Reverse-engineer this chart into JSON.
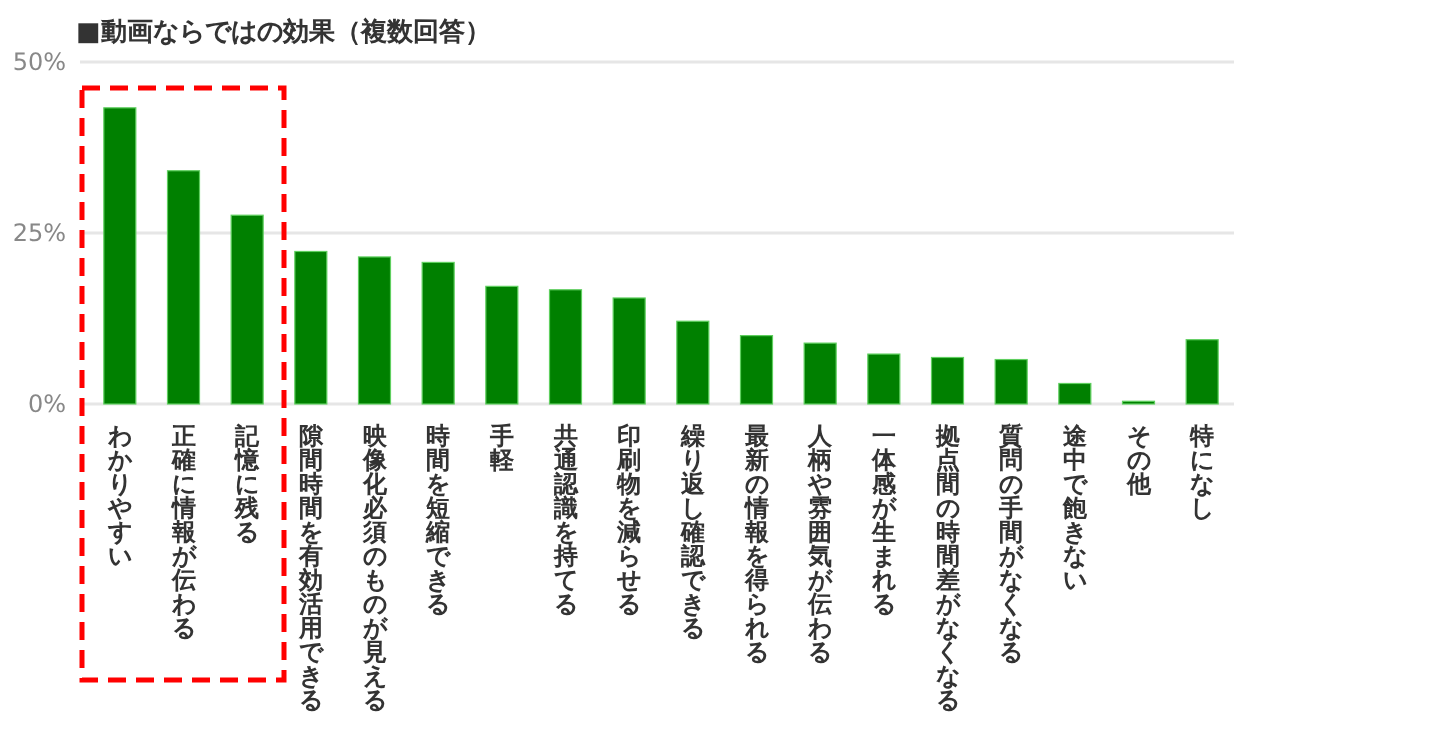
{
  "chart_data": {
    "type": "bar",
    "title": "■動画ならではの効果（複数回答）",
    "categories": [
      "わかりやすい",
      "正確に情報が伝わる",
      "記憶に残る",
      "隙間時間を有効活用できる",
      "映像化必須のものが見える",
      "時間を短縮できる",
      "手軽",
      "共通認識を持てる",
      "印刷物を減らせる",
      "繰り返し確認できる",
      "最新の情報を得られる",
      "人柄や雰囲気が伝わる",
      "一体感が生まれる",
      "拠点間の時間差がなくなる",
      "質問の手間がなくなる",
      "途中で飽きない",
      "その他",
      "特になし"
    ],
    "values": [
      43.3,
      34.1,
      27.6,
      22.3,
      21.5,
      20.7,
      17.2,
      16.7,
      15.5,
      12.1,
      10.0,
      8.9,
      7.3,
      6.8,
      6.5,
      3.0,
      0.4,
      9.4
    ],
    "color": "#008000",
    "ylim": [
      0,
      50
    ],
    "yticks": [
      {
        "value": 0,
        "label": "0%"
      },
      {
        "value": 25,
        "label": "25%"
      },
      {
        "value": 50,
        "label": "50%"
      }
    ],
    "grid": "y"
  }
}
